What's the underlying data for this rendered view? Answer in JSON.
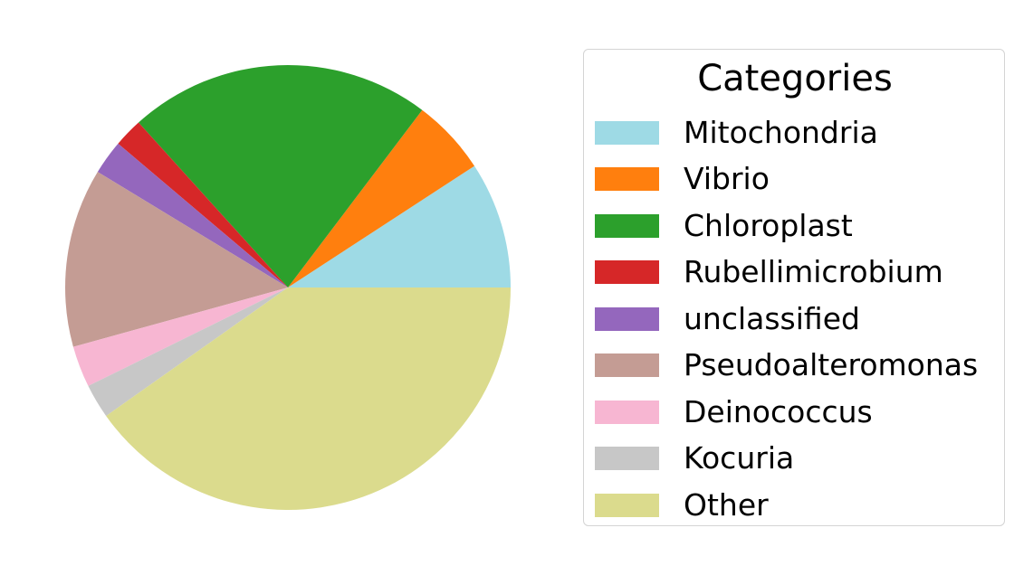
{
  "chart_data": {
    "type": "pie",
    "title": "",
    "legend": {
      "title": "Categories",
      "placement": "right"
    },
    "start_angle_deg": 0,
    "direction": "counterclockwise",
    "slices": [
      {
        "label": "Mitochondria",
        "value": 9.2,
        "color": "#9edae5"
      },
      {
        "label": "Vibrio",
        "value": 5.5,
        "color": "#ff7f0e"
      },
      {
        "label": "Chloroplast",
        "value": 22.0,
        "color": "#2ca02c"
      },
      {
        "label": "Rubellimicrobium",
        "value": 2.1,
        "color": "#d62728"
      },
      {
        "label": "unclassified",
        "value": 2.5,
        "color": "#9467bd"
      },
      {
        "label": "Pseudoalteromonas",
        "value": 13.0,
        "color": "#c49c94"
      },
      {
        "label": "Deinococcus",
        "value": 3.0,
        "color": "#f7b6d2"
      },
      {
        "label": "Kocuria",
        "value": 2.5,
        "color": "#c7c7c7"
      },
      {
        "label": "Other",
        "value": 40.2,
        "color": "#dbdb8d"
      }
    ]
  }
}
